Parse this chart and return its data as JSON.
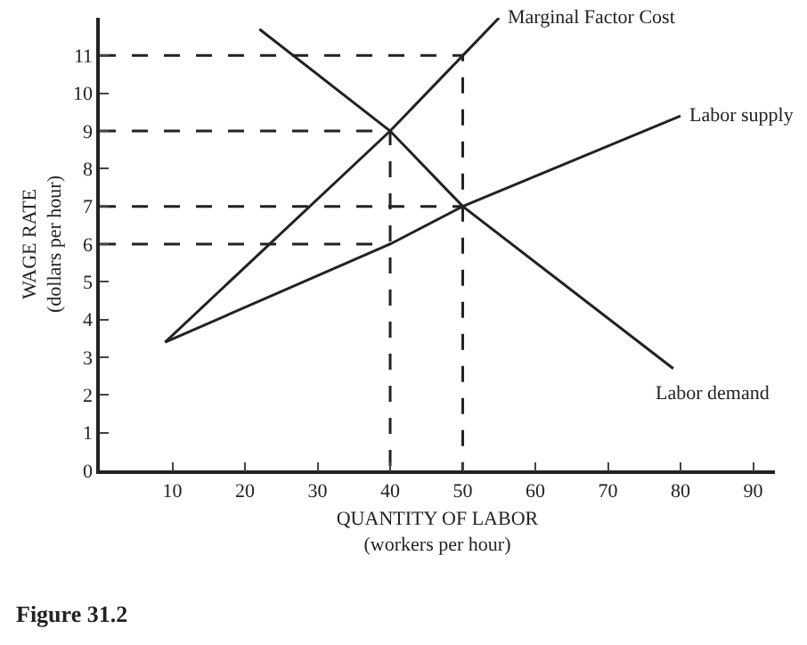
{
  "chart_data": {
    "type": "line",
    "xlabel": "QUANTITY OF LABOR\n(workers per hour)",
    "ylabel": "WAGE RATE\n(dollars per hour)",
    "xlim": [
      0,
      93
    ],
    "xticks": [
      10,
      20,
      30,
      40,
      50,
      60,
      70,
      80,
      90
    ],
    "ylim": [
      0,
      12
    ],
    "yticks": [
      0,
      1,
      2,
      3,
      4,
      5,
      6,
      7,
      8,
      9,
      10,
      11
    ],
    "grid": false,
    "legend": false,
    "marker": "none",
    "annotations": [
      "Figure 31.2"
    ],
    "series": [
      {
        "name": "Marginal Factor Cost",
        "color": "#222222",
        "x": [
          9,
          40,
          50,
          55
        ],
        "values": [
          3.4,
          9,
          11,
          12
        ]
      },
      {
        "name": "Labor supply",
        "color": "#222222",
        "x": [
          9,
          40,
          50,
          80
        ],
        "values": [
          3.4,
          6,
          7,
          9.4
        ]
      },
      {
        "name": "Labor demand",
        "color": "#222222",
        "x": [
          22,
          40,
          50,
          79
        ],
        "values": [
          11.7,
          9,
          7,
          2.7
        ]
      },
      {
        "color": "#222222",
        "line_style": "dashed",
        "x": [
          0,
          50,
          50
        ],
        "values": [
          11,
          11,
          0
        ]
      },
      {
        "color": "#222222",
        "line_style": "dashed",
        "x": [
          0,
          40,
          40
        ],
        "values": [
          9,
          9,
          0
        ]
      },
      {
        "color": "#222222",
        "line_style": "dashed",
        "x": [
          0,
          50
        ],
        "values": [
          7,
          7
        ]
      },
      {
        "color": "#222222",
        "line_style": "dashed",
        "x": [
          0,
          40
        ],
        "values": [
          6,
          6
        ]
      }
    ]
  }
}
